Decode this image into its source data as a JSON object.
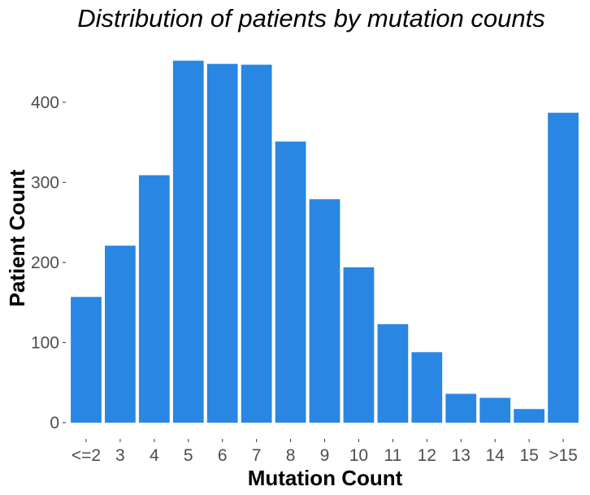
{
  "chart_data": {
    "type": "bar",
    "title": "Distribution of patients by mutation counts",
    "xlabel": "Mutation Count",
    "ylabel": "Patient Count",
    "categories": [
      "<=2",
      "3",
      "4",
      "5",
      "6",
      "7",
      "8",
      "9",
      "10",
      "11",
      "12",
      "13",
      "14",
      "15",
      ">15"
    ],
    "values": [
      157,
      221,
      309,
      452,
      448,
      447,
      351,
      279,
      194,
      123,
      88,
      36,
      31,
      17,
      387
    ],
    "ylim": [
      0,
      475
    ],
    "yticks": [
      0,
      100,
      200,
      300,
      400
    ],
    "bar_color": "#2986E2",
    "grid": false,
    "legend": "none"
  }
}
